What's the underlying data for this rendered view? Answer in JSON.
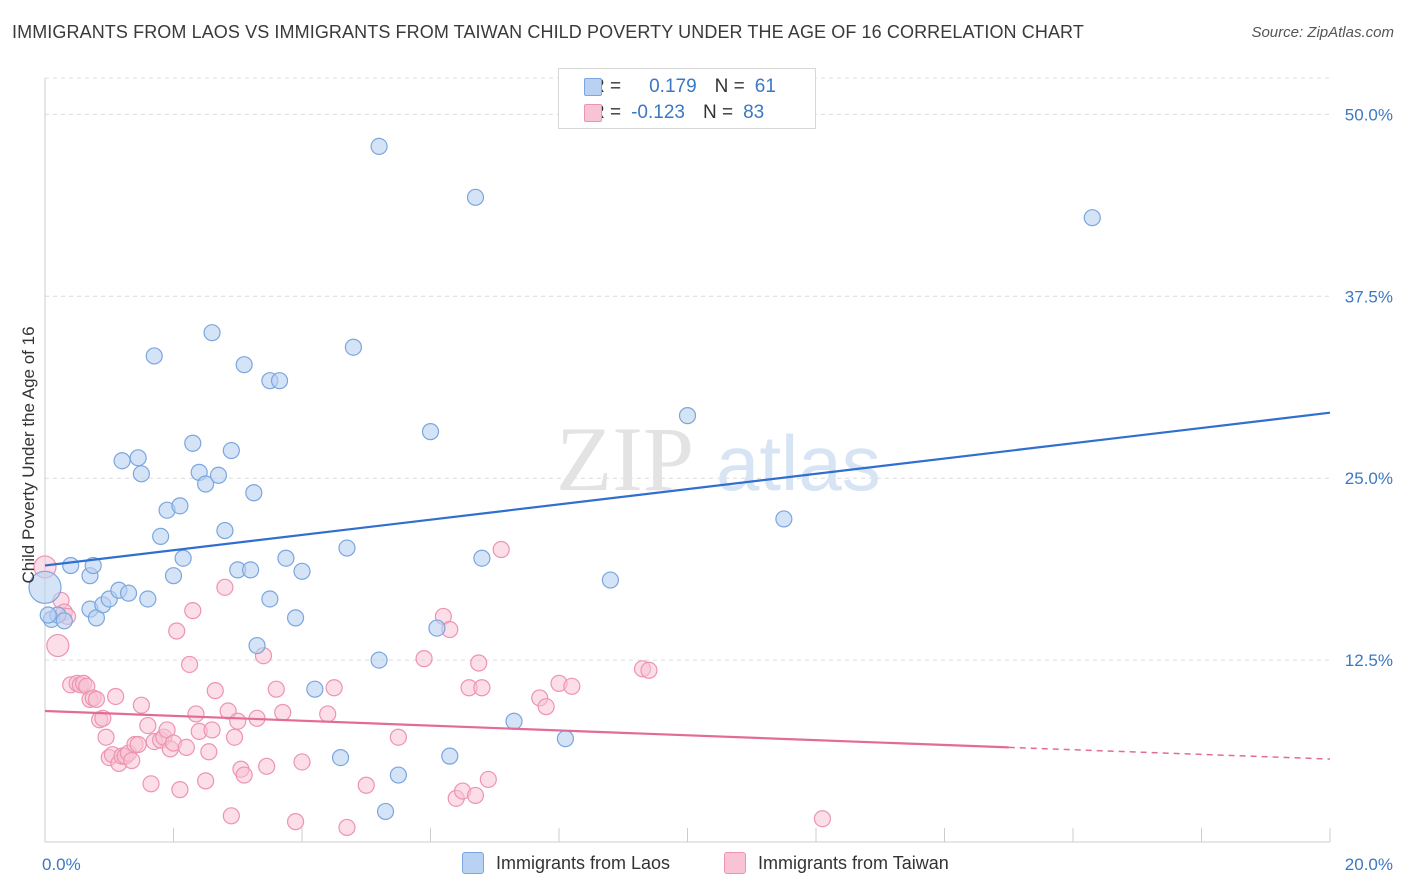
{
  "title": "IMMIGRANTS FROM LAOS VS IMMIGRANTS FROM TAIWAN CHILD POVERTY UNDER THE AGE OF 16 CORRELATION CHART",
  "source": "Source: ZipAtlas.com",
  "watermark": {
    "zip": "ZIP",
    "atlas": "atlas"
  },
  "legend_top": {
    "rows": [
      {
        "r_label": "R =",
        "r_value": "0.179",
        "n_label": "N =",
        "n_value": "61"
      },
      {
        "r_label": "R =",
        "r_value": "-0.123",
        "n_label": "N =",
        "n_value": "83"
      }
    ]
  },
  "colors": {
    "laos_fill": "#b9d1f2",
    "laos_stroke": "#7aa6df",
    "laos_line": "#2f6fcf",
    "taiwan_fill": "#f8c3d4",
    "taiwan_stroke": "#ee93b1",
    "taiwan_line": "#e26b97",
    "grid": "#dcdcdc",
    "tick": "#3b78c4"
  },
  "chart_data": {
    "type": "scatter",
    "title": "IMMIGRANTS FROM LAOS VS IMMIGRANTS FROM TAIWAN CHILD POVERTY UNDER THE AGE OF 16 CORRELATION CHART",
    "xlabel": "",
    "ylabel": "Child Poverty Under the Age of 16",
    "xlim": [
      0,
      20
    ],
    "ylim": [
      0,
      52.5
    ],
    "x_tick_labels": [
      "0.0%",
      "20.0%"
    ],
    "y_ticks": [
      12.5,
      25.0,
      37.5,
      50.0
    ],
    "y_tick_labels": [
      "12.5%",
      "25.0%",
      "37.5%",
      "50.0%"
    ],
    "grid": true,
    "legend_position": "bottom",
    "series": [
      {
        "name": "Immigrants from Laos",
        "r": 0.179,
        "n": 61,
        "trend": {
          "x": [
            0,
            20
          ],
          "y": [
            19.0,
            29.5
          ]
        },
        "points": [
          [
            0.0,
            17.5
          ],
          [
            0.1,
            15.3
          ],
          [
            0.2,
            15.6
          ],
          [
            0.3,
            15.2
          ],
          [
            0.4,
            19.0
          ],
          [
            0.7,
            16.0
          ],
          [
            0.7,
            18.3
          ],
          [
            0.75,
            19.0
          ],
          [
            0.8,
            15.4
          ],
          [
            0.9,
            16.3
          ],
          [
            1.0,
            16.7
          ],
          [
            1.15,
            17.3
          ],
          [
            1.2,
            26.2
          ],
          [
            1.3,
            17.1
          ],
          [
            1.45,
            26.4
          ],
          [
            1.5,
            25.3
          ],
          [
            1.6,
            16.7
          ],
          [
            1.7,
            33.4
          ],
          [
            1.8,
            21.0
          ],
          [
            1.9,
            22.8
          ],
          [
            2.0,
            18.3
          ],
          [
            2.1,
            23.1
          ],
          [
            2.15,
            19.5
          ],
          [
            2.3,
            27.4
          ],
          [
            2.4,
            25.4
          ],
          [
            2.5,
            24.6
          ],
          [
            2.6,
            35.0
          ],
          [
            2.7,
            25.2
          ],
          [
            2.8,
            21.4
          ],
          [
            2.9,
            26.9
          ],
          [
            3.0,
            18.7
          ],
          [
            3.1,
            32.8
          ],
          [
            3.2,
            18.7
          ],
          [
            3.25,
            24.0
          ],
          [
            3.3,
            13.5
          ],
          [
            3.5,
            31.7
          ],
          [
            3.5,
            16.7
          ],
          [
            3.65,
            31.7
          ],
          [
            3.75,
            19.5
          ],
          [
            3.9,
            15.4
          ],
          [
            4.0,
            18.6
          ],
          [
            4.2,
            10.5
          ],
          [
            4.6,
            5.8
          ],
          [
            4.7,
            20.2
          ],
          [
            4.8,
            34.0
          ],
          [
            5.2,
            12.5
          ],
          [
            5.3,
            2.1
          ],
          [
            5.2,
            47.8
          ],
          [
            5.5,
            4.6
          ],
          [
            6.0,
            28.2
          ],
          [
            6.1,
            14.7
          ],
          [
            6.3,
            5.9
          ],
          [
            6.7,
            44.3
          ],
          [
            6.8,
            19.5
          ],
          [
            7.3,
            8.3
          ],
          [
            8.1,
            7.1
          ],
          [
            8.8,
            18.0
          ],
          [
            10.0,
            29.3
          ],
          [
            11.5,
            22.2
          ],
          [
            16.3,
            42.9
          ],
          [
            0.05,
            15.6
          ]
        ]
      },
      {
        "name": "Immigrants from Taiwan",
        "r": -0.123,
        "n": 83,
        "trend": {
          "x": [
            0,
            15
          ],
          "y": [
            9.0,
            6.5
          ]
        },
        "trend_dashed": {
          "x": [
            15,
            20
          ],
          "y": [
            6.5,
            5.7
          ]
        },
        "points": [
          [
            0.0,
            18.9
          ],
          [
            0.2,
            13.5
          ],
          [
            0.25,
            16.6
          ],
          [
            0.3,
            15.8
          ],
          [
            0.35,
            15.5
          ],
          [
            0.4,
            10.8
          ],
          [
            0.5,
            10.9
          ],
          [
            0.55,
            10.8
          ],
          [
            0.6,
            10.9
          ],
          [
            0.65,
            10.7
          ],
          [
            0.7,
            9.8
          ],
          [
            0.75,
            9.9
          ],
          [
            0.8,
            9.8
          ],
          [
            0.85,
            8.4
          ],
          [
            0.9,
            8.5
          ],
          [
            0.95,
            7.2
          ],
          [
            1.0,
            5.8
          ],
          [
            1.05,
            6.0
          ],
          [
            1.1,
            10.0
          ],
          [
            1.15,
            5.4
          ],
          [
            1.2,
            5.9
          ],
          [
            1.25,
            5.9
          ],
          [
            1.3,
            6.1
          ],
          [
            1.35,
            5.6
          ],
          [
            1.4,
            6.7
          ],
          [
            1.45,
            6.7
          ],
          [
            1.5,
            9.4
          ],
          [
            1.6,
            8.0
          ],
          [
            1.65,
            4.0
          ],
          [
            1.7,
            6.9
          ],
          [
            1.8,
            7.0
          ],
          [
            1.85,
            7.2
          ],
          [
            1.9,
            7.7
          ],
          [
            1.95,
            6.4
          ],
          [
            2.0,
            6.8
          ],
          [
            2.05,
            14.5
          ],
          [
            2.1,
            3.6
          ],
          [
            2.2,
            6.5
          ],
          [
            2.25,
            12.2
          ],
          [
            2.3,
            15.9
          ],
          [
            2.35,
            8.8
          ],
          [
            2.4,
            7.6
          ],
          [
            2.5,
            4.2
          ],
          [
            2.55,
            6.2
          ],
          [
            2.6,
            7.7
          ],
          [
            2.65,
            10.4
          ],
          [
            2.8,
            17.5
          ],
          [
            2.85,
            9.0
          ],
          [
            2.9,
            1.8
          ],
          [
            2.95,
            7.2
          ],
          [
            3.0,
            8.3
          ],
          [
            3.05,
            5.0
          ],
          [
            3.1,
            4.6
          ],
          [
            3.3,
            8.5
          ],
          [
            3.4,
            12.8
          ],
          [
            3.45,
            5.2
          ],
          [
            3.6,
            10.5
          ],
          [
            3.7,
            8.9
          ],
          [
            3.9,
            1.4
          ],
          [
            4.0,
            5.5
          ],
          [
            4.4,
            8.8
          ],
          [
            4.5,
            10.6
          ],
          [
            4.7,
            1.0
          ],
          [
            5.0,
            3.9
          ],
          [
            5.5,
            7.2
          ],
          [
            5.9,
            12.6
          ],
          [
            6.2,
            15.5
          ],
          [
            6.3,
            14.6
          ],
          [
            6.4,
            3.0
          ],
          [
            6.5,
            3.5
          ],
          [
            6.6,
            10.6
          ],
          [
            6.7,
            3.2
          ],
          [
            6.75,
            12.3
          ],
          [
            6.8,
            10.6
          ],
          [
            6.9,
            4.3
          ],
          [
            7.1,
            20.1
          ],
          [
            7.7,
            9.9
          ],
          [
            7.8,
            9.3
          ],
          [
            8.0,
            10.9
          ],
          [
            8.2,
            10.7
          ],
          [
            9.3,
            11.9
          ],
          [
            9.4,
            11.8
          ],
          [
            12.1,
            1.6
          ]
        ]
      }
    ]
  },
  "legend_bottom": {
    "items": [
      {
        "label": "Immigrants from Laos"
      },
      {
        "label": "Immigrants from Taiwan"
      }
    ]
  }
}
